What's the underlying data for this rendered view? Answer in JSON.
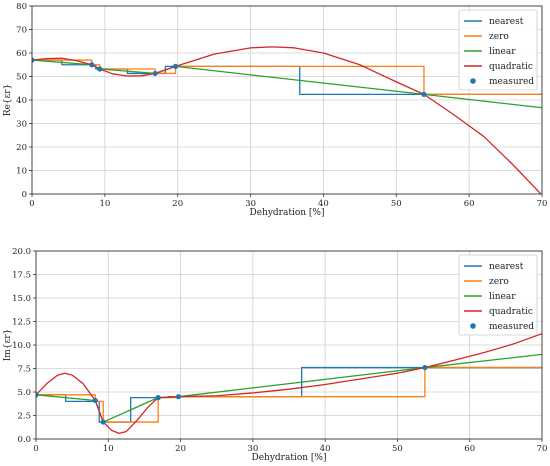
{
  "chart_data": [
    {
      "type": "line",
      "xlabel": "Dehydration [%]",
      "ylabel": "Re{εr}",
      "xlim": [
        0,
        70
      ],
      "ylim": [
        0,
        80
      ],
      "xticks": [
        0,
        10,
        20,
        30,
        40,
        50,
        60,
        70
      ],
      "yticks": [
        0,
        10,
        20,
        30,
        40,
        50,
        60,
        70,
        80
      ],
      "grid": true,
      "legend_position": "top-right",
      "measured": {
        "name": "measured",
        "x": [
          0,
          8.2,
          9.3,
          16.9,
          19.7,
          53.8
        ],
        "y": [
          57.0,
          55.0,
          53.2,
          51.3,
          54.3,
          42.4
        ]
      },
      "series": [
        {
          "name": "nearest",
          "color": "#1f77b4",
          "x": [
            0,
            4.1,
            4.1,
            8.75,
            8.75,
            13.1,
            13.1,
            18.3,
            18.3,
            36.75,
            36.75,
            70
          ],
          "y": [
            57.0,
            57.0,
            55.0,
            55.0,
            53.2,
            53.2,
            51.3,
            51.3,
            54.3,
            54.3,
            42.4,
            42.4
          ]
        },
        {
          "name": "zero",
          "color": "#ff7f0e",
          "x": [
            0,
            8.2,
            8.2,
            9.3,
            9.3,
            16.9,
            16.9,
            19.7,
            19.7,
            53.8,
            53.8,
            70
          ],
          "y": [
            57.0,
            57.0,
            55.0,
            55.0,
            53.2,
            53.2,
            51.3,
            51.3,
            54.3,
            54.3,
            42.4,
            42.4
          ]
        },
        {
          "name": "linear",
          "color": "#2ca02c",
          "x": [
            0,
            8.2,
            9.3,
            16.9,
            19.7,
            53.8,
            70
          ],
          "y": [
            57.0,
            55.0,
            53.2,
            51.3,
            54.3,
            42.4,
            36.7
          ]
        },
        {
          "name": "quadratic",
          "color": "#d62728",
          "x": [
            0,
            2,
            4,
            6,
            8.2,
            9.3,
            11,
            13,
            15,
            16.9,
            19.7,
            25,
            30,
            33,
            36,
            40,
            45,
            50,
            53.8,
            58,
            62,
            66,
            70
          ],
          "y": [
            57.0,
            57.6,
            57.8,
            56.8,
            55.0,
            53.2,
            51.2,
            50.2,
            50.3,
            51.3,
            54.3,
            59.5,
            62.2,
            62.6,
            62.2,
            60.0,
            55.0,
            47.7,
            42.4,
            33.5,
            24.5,
            12.5,
            -0.5
          ]
        }
      ]
    },
    {
      "type": "line",
      "xlabel": "Dehydration [%]",
      "ylabel": "Im{εr}",
      "xlim": [
        0,
        70
      ],
      "ylim": [
        0,
        20
      ],
      "xticks": [
        0,
        10,
        20,
        30,
        40,
        50,
        60,
        70
      ],
      "yticks": [
        0.0,
        2.5,
        5.0,
        7.5,
        10.0,
        12.5,
        15.0,
        17.5,
        20.0
      ],
      "grid": true,
      "legend_position": "top-right",
      "measured": {
        "name": "measured",
        "x": [
          0,
          8.2,
          9.3,
          16.9,
          19.7,
          53.8
        ],
        "y": [
          4.7,
          4.1,
          1.8,
          4.4,
          4.5,
          7.6
        ]
      },
      "series": [
        {
          "name": "nearest",
          "color": "#1f77b4",
          "x": [
            0,
            4.1,
            4.1,
            8.75,
            8.75,
            13.1,
            13.1,
            18.3,
            18.3,
            36.75,
            36.75,
            70
          ],
          "y": [
            4.7,
            4.7,
            4.0,
            4.0,
            1.8,
            1.8,
            4.4,
            4.4,
            4.5,
            4.5,
            7.6,
            7.6
          ]
        },
        {
          "name": "zero",
          "color": "#ff7f0e",
          "x": [
            0,
            8.2,
            8.2,
            9.3,
            9.3,
            16.9,
            16.9,
            19.7,
            19.7,
            53.8,
            53.8,
            70
          ],
          "y": [
            4.7,
            4.7,
            4.0,
            4.0,
            1.8,
            1.8,
            4.4,
            4.4,
            4.5,
            4.5,
            7.6,
            7.6
          ]
        },
        {
          "name": "linear",
          "color": "#2ca02c",
          "x": [
            0,
            8.2,
            9.3,
            16.9,
            19.7,
            53.8,
            70
          ],
          "y": [
            4.7,
            4.1,
            1.8,
            4.4,
            4.5,
            7.6,
            9.0
          ]
        },
        {
          "name": "quadratic",
          "color": "#d62728",
          "x": [
            0,
            1.5,
            3,
            4,
            5,
            6.5,
            8.2,
            9.3,
            10.5,
            11.5,
            12.5,
            14,
            15.5,
            16.9,
            19.7,
            25,
            30,
            35,
            40,
            45,
            50,
            53.8,
            58,
            62,
            66,
            70
          ],
          "y": [
            4.7,
            5.9,
            6.8,
            7.0,
            6.8,
            5.9,
            4.1,
            1.8,
            0.9,
            0.6,
            0.8,
            2.0,
            3.4,
            4.4,
            4.5,
            4.6,
            4.9,
            5.3,
            5.8,
            6.4,
            7.0,
            7.6,
            8.4,
            9.2,
            10.1,
            11.2
          ]
        }
      ]
    }
  ]
}
